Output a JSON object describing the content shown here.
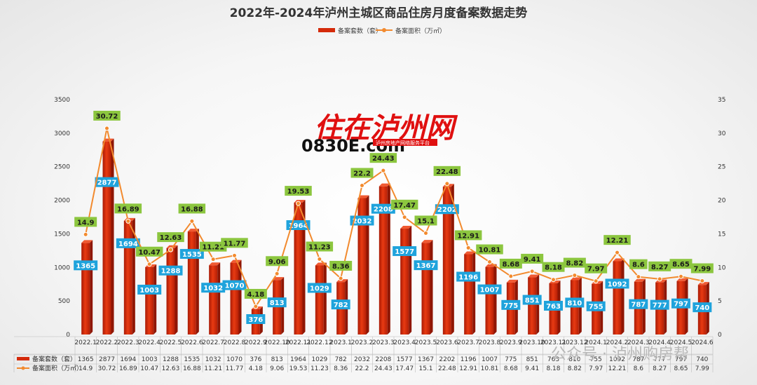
{
  "chart_data": {
    "type": "bar+line",
    "title": "2022年-2024年泸州主城区商品住房月度备案数据走势",
    "categories": [
      "2022.1",
      "2022.2",
      "2022.3",
      "2022.4",
      "2022.5",
      "2022.6",
      "2022.7",
      "2022.8",
      "2022.9",
      "2022.10",
      "2022.11",
      "2022.12",
      "2023.1",
      "2023.2",
      "2023.3",
      "2023.4",
      "2023.5",
      "2023.6",
      "2023.7",
      "2023.8",
      "2023.9",
      "2023.10",
      "2023.11",
      "2023.12",
      "2024.1",
      "2024.2",
      "2024.3",
      "2024.4",
      "2024.5",
      "2024.6"
    ],
    "series": [
      {
        "name": "备案套数（套）",
        "type": "bar",
        "axis": "left",
        "color": "#d42a0a",
        "values": [
          1365,
          2877,
          1694,
          1003,
          1288,
          1535,
          1032,
          1070,
          376,
          813,
          1964,
          1029,
          782,
          2032,
          2208,
          1577,
          1367,
          2202,
          1196,
          1007,
          775,
          851,
          763,
          810,
          755,
          1092,
          787,
          777,
          797,
          740
        ]
      },
      {
        "name": "备案面积（万㎡）",
        "type": "line",
        "axis": "right",
        "color": "#f28a2e",
        "values": [
          14.9,
          30.72,
          16.89,
          10.47,
          12.63,
          16.88,
          11.21,
          11.77,
          4.18,
          9.06,
          19.53,
          11.23,
          8.36,
          22.2,
          24.43,
          17.47,
          15.1,
          22.48,
          12.91,
          10.81,
          8.68,
          9.41,
          8.18,
          8.82,
          7.97,
          12.21,
          8.6,
          8.27,
          8.65,
          7.99
        ]
      }
    ],
    "ylim_left": [
      0,
      3500
    ],
    "ylim_right": [
      0,
      35
    ],
    "left_ticks": [
      0,
      500,
      1000,
      1500,
      2000,
      2500,
      3000,
      3500
    ],
    "right_ticks": [
      0,
      5,
      10,
      15,
      20,
      25,
      30,
      35
    ],
    "legend_position": "top",
    "table_below": true,
    "bar_label_color": "#1fa3dc",
    "line_label_color": "#8cc63f"
  },
  "logo": {
    "main": "住在泸州网",
    "sub": "0830E.com",
    "tagline": "泸州房地产网络服务平台"
  },
  "watermark": {
    "text": "公众号 · 泸州购房帮"
  }
}
